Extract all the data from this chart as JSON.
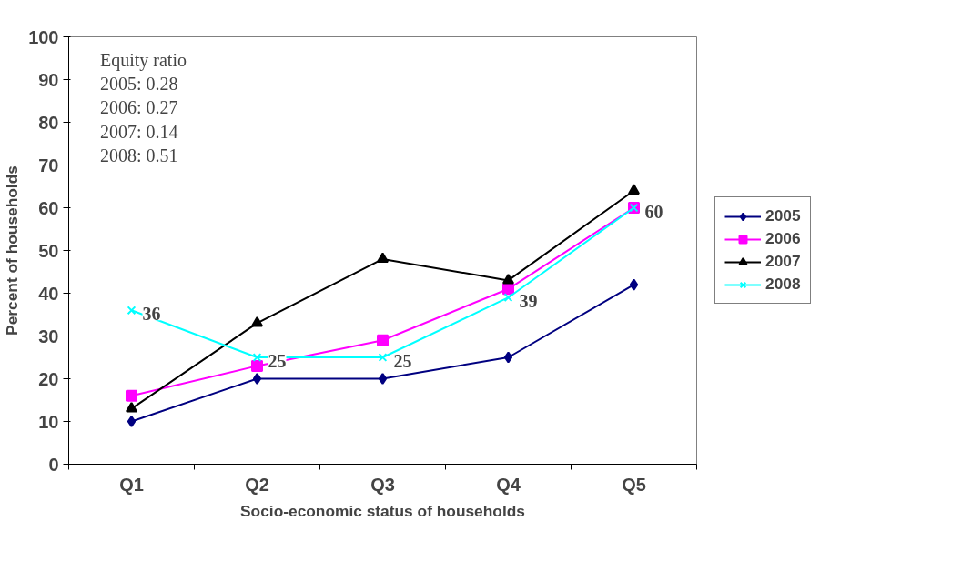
{
  "chart_data": {
    "type": "line",
    "xlabel": "Socio-economic status of households",
    "ylabel": "Percent of households",
    "categories": [
      "Q1",
      "Q2",
      "Q3",
      "Q4",
      "Q5"
    ],
    "series": [
      {
        "name": "2005",
        "color": "#000080",
        "marker": "diamond",
        "values": [
          10,
          20,
          20,
          25,
          42
        ]
      },
      {
        "name": "2006",
        "color": "#ff00ff",
        "marker": "square",
        "values": [
          16,
          23,
          29,
          41,
          60
        ]
      },
      {
        "name": "2007",
        "color": "#000000",
        "marker": "triangle",
        "values": [
          13,
          33,
          48,
          43,
          64
        ]
      },
      {
        "name": "2008",
        "color": "#00ffff",
        "marker": "cross",
        "values": [
          36,
          25,
          25,
          39,
          60
        ],
        "value_labels": [
          "36",
          "25",
          "25",
          "39",
          "60"
        ]
      }
    ],
    "ylim": [
      0,
      100
    ],
    "yticks": [
      0,
      10,
      20,
      30,
      40,
      50,
      60,
      70,
      80,
      90,
      100
    ],
    "grid": false,
    "legend": "right",
    "line_style": "solid",
    "annotations": [
      "Equity ratio\n2005: 0.28\n2006: 0.27\n2007: 0.14\n2008: 0.51"
    ]
  }
}
